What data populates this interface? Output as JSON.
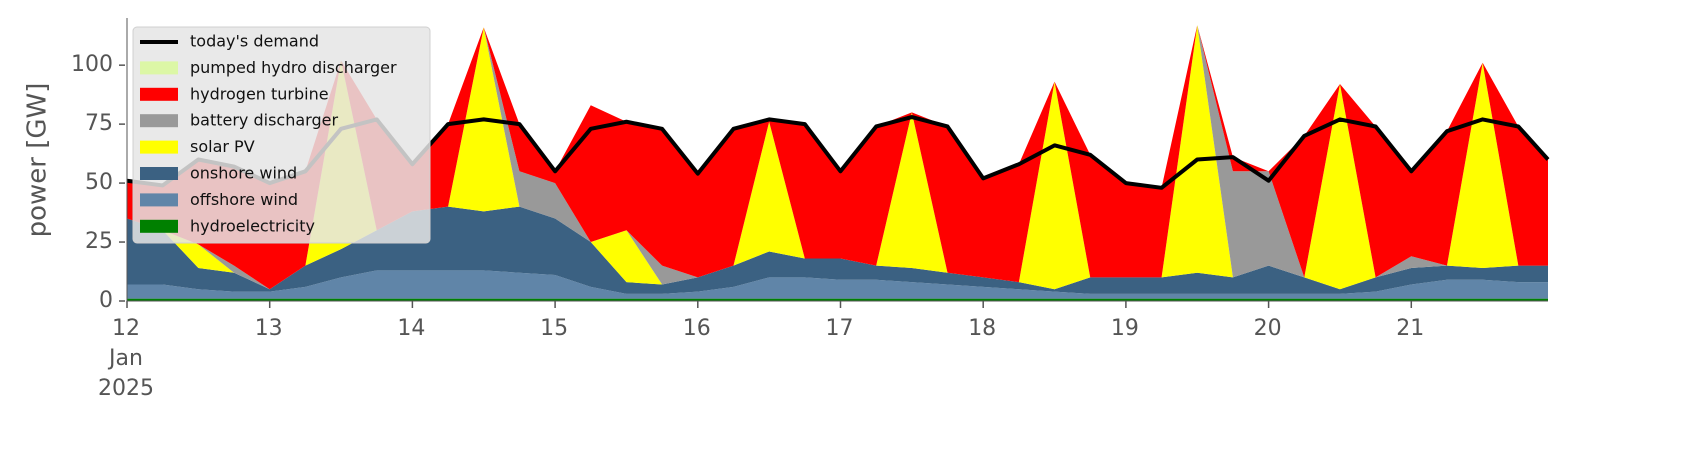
{
  "chart_data": {
    "type": "area",
    "stacked": true,
    "ylabel": "power [GW]",
    "legend": "upper left",
    "x": [
      12,
      12.25,
      12.5,
      12.75,
      13,
      13.25,
      13.5,
      13.75,
      14,
      14.25,
      14.5,
      14.75,
      15,
      15.25,
      15.5,
      15.75,
      16,
      16.25,
      16.5,
      16.75,
      17,
      17.25,
      17.5,
      17.75,
      18,
      18.25,
      18.5,
      18.75,
      19,
      19.25,
      19.5,
      19.75,
      20,
      20.25,
      20.5,
      20.75,
      21,
      21.25,
      21.5,
      21.75,
      21.958
    ],
    "xlim": [
      12,
      21.958
    ],
    "xticks": [
      {
        "value": 12,
        "label": "12\nJan\n2025"
      },
      13,
      14,
      15,
      16,
      17,
      18,
      19,
      20,
      21
    ],
    "ylim": [
      0,
      120
    ],
    "yticks": [
      0,
      25,
      50,
      75,
      100
    ],
    "demand": {
      "name": "today's demand",
      "color": "#000000",
      "values": [
        51,
        49,
        60,
        57,
        50,
        55,
        73,
        77,
        58,
        75,
        77,
        75,
        55,
        73,
        76,
        73,
        54,
        73,
        77,
        75,
        55,
        74,
        78,
        74,
        52,
        58,
        66,
        62,
        50,
        48,
        60,
        61,
        51,
        70,
        77,
        74,
        55,
        72,
        77,
        74,
        60
      ]
    },
    "series": [
      {
        "name": "hydroelectricity",
        "color": "#008000",
        "values": [
          1,
          1,
          1,
          1,
          1,
          1,
          1,
          1,
          1,
          1,
          1,
          1,
          1,
          1,
          1,
          1,
          1,
          1,
          1,
          1,
          1,
          1,
          1,
          1,
          1,
          1,
          1,
          1,
          1,
          1,
          1,
          1,
          1,
          1,
          1,
          1,
          1,
          1,
          1,
          1,
          1
        ]
      },
      {
        "name": "offshore wind",
        "color": "#6085a8",
        "values": [
          6,
          6,
          4,
          3,
          3,
          5,
          9,
          12,
          12,
          12,
          12,
          11,
          10,
          5,
          2,
          2,
          3,
          5,
          9,
          9,
          8,
          8,
          7,
          6,
          5,
          4,
          3,
          2,
          2,
          2,
          2,
          2,
          2,
          2,
          2,
          3,
          6,
          8,
          8,
          7,
          7
        ]
      },
      {
        "name": "onshore wind",
        "color": "#3b6182",
        "values": [
          28,
          23,
          9,
          8,
          1,
          9,
          12,
          17,
          25,
          27,
          25,
          28,
          24,
          19,
          5,
          4,
          6,
          9,
          11,
          8,
          9,
          6,
          6,
          5,
          4,
          3,
          1,
          7,
          7,
          7,
          9,
          7,
          12,
          7,
          2,
          6,
          7,
          6,
          5,
          7,
          7
        ]
      },
      {
        "name": "solar PV",
        "color": "#ffff00",
        "values": [
          0,
          0,
          10,
          0,
          0,
          0,
          80,
          0,
          0,
          0,
          78,
          0,
          0,
          0,
          22,
          0,
          0,
          0,
          55,
          0,
          0,
          0,
          66,
          0,
          0,
          0,
          88,
          0,
          0,
          0,
          105,
          0,
          0,
          0,
          87,
          0,
          0,
          0,
          87,
          0,
          0
        ]
      },
      {
        "name": "battery discharger",
        "color": "#999999",
        "values": [
          0,
          0,
          0,
          3,
          0,
          0,
          0,
          0,
          0,
          0,
          0,
          15,
          15,
          0,
          0,
          8,
          0,
          0,
          0,
          0,
          0,
          0,
          0,
          0,
          0,
          0,
          0,
          0,
          0,
          0,
          0,
          45,
          40,
          0,
          0,
          0,
          5,
          0,
          0,
          0,
          0
        ]
      },
      {
        "name": "hydrogen turbine",
        "color": "#ff0000",
        "values": [
          16,
          19,
          36,
          42,
          45,
          40,
          0,
          47,
          20,
          35,
          0,
          20,
          5,
          58,
          46,
          58,
          44,
          58,
          1,
          57,
          37,
          59,
          0,
          62,
          42,
          50,
          0,
          52,
          40,
          38,
          0,
          6,
          0,
          60,
          0,
          64,
          36,
          57,
          0,
          59,
          45
        ]
      },
      {
        "name": "pumped hydro discharger",
        "color": "#dcf7a6",
        "values": [
          0,
          0,
          0,
          0,
          0,
          0,
          0,
          0,
          0,
          0,
          0,
          0,
          0,
          0,
          0,
          0,
          0,
          0,
          0,
          0,
          0,
          0,
          0,
          0,
          0,
          0,
          0,
          0,
          0,
          0,
          0,
          0,
          0,
          0,
          0,
          0,
          0,
          0,
          0,
          0,
          0
        ]
      }
    ]
  }
}
